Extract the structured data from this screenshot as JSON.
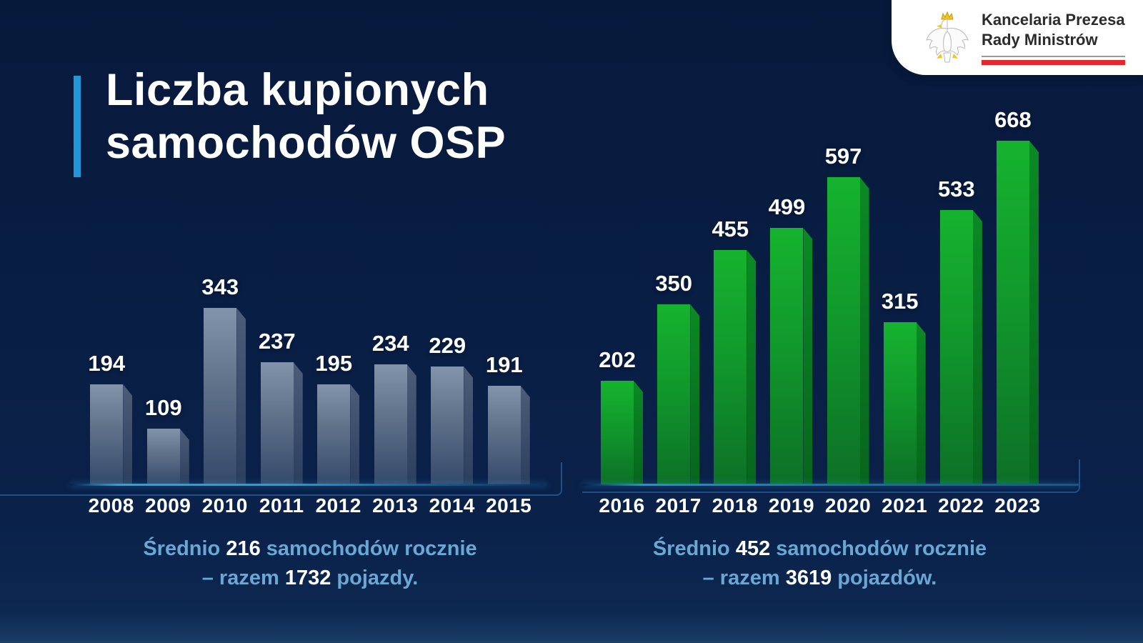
{
  "header": {
    "title_line1": "Liczba kupionych",
    "title_line2": "samochodów OSP",
    "accent_color": "#2196d8"
  },
  "logo": {
    "line1": "Kancelaria Prezesa",
    "line2": "Rady Ministrów",
    "red_rule_color": "#e8242c",
    "eagle_icon": "polish-eagle-emblem"
  },
  "chart_data": [
    {
      "type": "bar",
      "categories": [
        "2008",
        "2009",
        "2010",
        "2011",
        "2012",
        "2013",
        "2014",
        "2015"
      ],
      "values": [
        194,
        109,
        343,
        237,
        195,
        234,
        229,
        191
      ],
      "title": "",
      "xlabel": "",
      "ylabel": "",
      "ylim": [
        0,
        700
      ],
      "grid": false,
      "legend": "none",
      "value_labels": "above bars",
      "colors": {
        "front_top": "#8294ab",
        "front_mid": "#5f7189",
        "front_bottom": "#35496a",
        "side_top": "#4c5d78",
        "side_bottom": "#2c3f5e"
      },
      "baseline_color": "#2da4dd",
      "summary": {
        "lead": "Średnio",
        "avg": "216",
        "mid": "samochodów rocznie",
        "dash_lead": "– razem",
        "total": "1732",
        "tail": "pojazdy."
      }
    },
    {
      "type": "bar",
      "categories": [
        "2016",
        "2017",
        "2018",
        "2019",
        "2020",
        "2021",
        "2022",
        "2023"
      ],
      "values": [
        202,
        350,
        455,
        499,
        597,
        315,
        533,
        668
      ],
      "title": "",
      "xlabel": "",
      "ylabel": "",
      "ylim": [
        0,
        700
      ],
      "grid": false,
      "legend": "none",
      "value_labels": "above bars",
      "colors": {
        "front_top": "#16b32f",
        "front_mid": "#11992c",
        "front_bottom": "#0d7027",
        "side_top": "#0b8a24",
        "side_bottom": "#07651d"
      },
      "baseline_color": "#2794c6",
      "summary": {
        "lead": "Średnio",
        "avg": "452",
        "mid": "samochodów rocznie",
        "dash_lead": "– razem",
        "total": "3619",
        "tail": "pojazdów."
      }
    }
  ]
}
